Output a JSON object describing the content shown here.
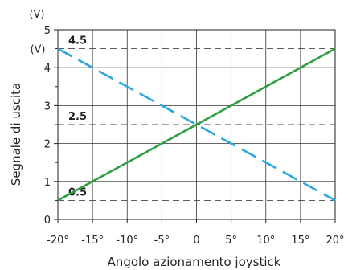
{
  "chart_data": {
    "type": "line",
    "xlabel": "Angolo azionamento joystick",
    "ylabel": "Segnale di uscita",
    "y_unit_top": "(V)",
    "y_unit_side": "(V)",
    "x": [
      -20,
      -15,
      -10,
      -5,
      0,
      5,
      10,
      15,
      20
    ],
    "x_tick_labels": [
      "-20°",
      "-15°",
      "-10°",
      "-5°",
      "0",
      "5°",
      "10°",
      "15°",
      "20°"
    ],
    "xlim": [
      -20,
      20
    ],
    "ylim": [
      0,
      5
    ],
    "y_ticks": [
      0,
      1,
      2,
      3,
      4,
      5
    ],
    "y_tick_labels": [
      "0",
      "1",
      "2",
      "3",
      "4",
      "5"
    ],
    "grid": true,
    "series": [
      {
        "style": "solid",
        "color": "#2e9e3f",
        "points": [
          [
            -20,
            0.5
          ],
          [
            20,
            4.5
          ]
        ]
      },
      {
        "style": "dashed",
        "color": "#29a8e0",
        "points": [
          [
            -20,
            4.5
          ],
          [
            20,
            0.5
          ]
        ]
      }
    ],
    "reference_lines": [
      {
        "y": 4.5,
        "label": "4.5"
      },
      {
        "y": 2.5,
        "label": "2.5"
      },
      {
        "y": 0.5,
        "label": "0.5"
      }
    ]
  }
}
